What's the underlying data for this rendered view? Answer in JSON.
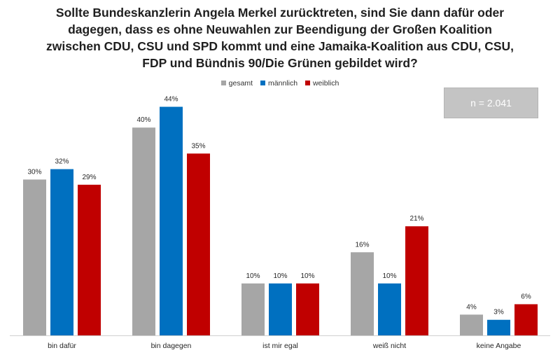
{
  "chart_data": {
    "type": "bar",
    "title_lines": [
      "Sollte Bundeskanzlerin Angela Merkel zurücktreten, sind Sie dann dafür oder",
      "dagegen, dass es ohne Neuwahlen zur Beendigung der Großen Koalition",
      "zwischen CDU, CSU und SPD kommt und eine Jamaika-Koalition aus CDU, CSU,",
      "FDP und Bündnis 90/Die Grünen gebildet wird?"
    ],
    "categories": [
      "bin dafür",
      "bin dagegen",
      "ist mir egal",
      "weiß nicht",
      "keine Angabe"
    ],
    "series": [
      {
        "name": "gesamt",
        "color": "#a6a6a6",
        "values": [
          30,
          40,
          10,
          16,
          4
        ]
      },
      {
        "name": "männlich",
        "color": "#0070c0",
        "values": [
          32,
          44,
          10,
          10,
          3
        ]
      },
      {
        "name": "weiblich",
        "color": "#c00000",
        "values": [
          29,
          35,
          10,
          21,
          6
        ]
      }
    ],
    "value_suffix": "%",
    "ylim": [
      0,
      50
    ],
    "grid": false,
    "legend_position": "top-center",
    "annotation": "n = 2.041"
  }
}
